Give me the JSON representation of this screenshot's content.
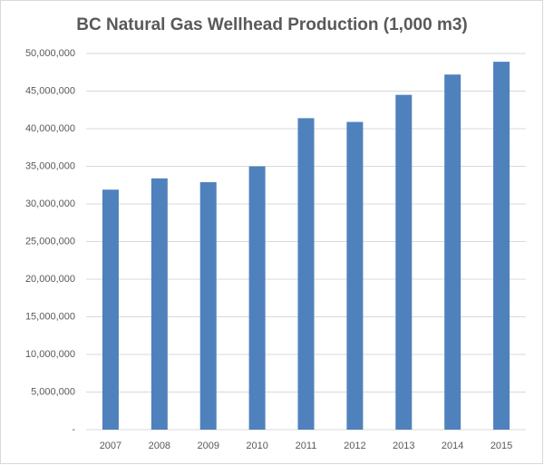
{
  "chart_data": {
    "type": "bar",
    "title": "BC Natural Gas Wellhead Production (1,000 m3)",
    "categories": [
      "2007",
      "2008",
      "2009",
      "2010",
      "2011",
      "2012",
      "2013",
      "2014",
      "2015"
    ],
    "values": [
      31900000,
      33400000,
      32900000,
      35000000,
      41400000,
      40900000,
      44500000,
      47200000,
      48900000
    ],
    "color": "#4f81bd",
    "ylim": [
      0,
      50000000
    ],
    "yticks": [
      {
        "value": 0,
        "label": "-"
      },
      {
        "value": 5000000,
        "label": "5,000,000"
      },
      {
        "value": 10000000,
        "label": "10,000,000"
      },
      {
        "value": 15000000,
        "label": "15,000,000"
      },
      {
        "value": 20000000,
        "label": "20,000,000"
      },
      {
        "value": 25000000,
        "label": "25,000,000"
      },
      {
        "value": 30000000,
        "label": "30,000,000"
      },
      {
        "value": 35000000,
        "label": "35,000,000"
      },
      {
        "value": 40000000,
        "label": "40,000,000"
      },
      {
        "value": 45000000,
        "label": "45,000,000"
      },
      {
        "value": 50000000,
        "label": "50,000,000"
      }
    ],
    "grid": true
  }
}
